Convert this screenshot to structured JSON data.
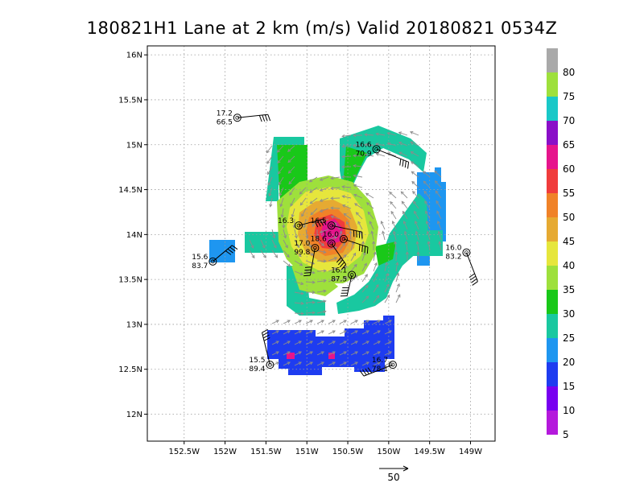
{
  "chart_data": {
    "type": "heatmap",
    "title": "180821H1 Lane at 2 km (m/s) Valid 20180821 0534Z",
    "x_ticks": [
      "152.5W",
      "152W",
      "151.5W",
      "151W",
      "150.5W",
      "150W",
      "149.5W",
      "149W"
    ],
    "y_ticks": [
      "16N",
      "15.5N",
      "15N",
      "14.5N",
      "14N",
      "13.5N",
      "13N",
      "12.5N",
      "12N"
    ],
    "xlim": [
      -152.95,
      -148.7
    ],
    "ylim": [
      11.7,
      16.1
    ],
    "grid": true,
    "colorbar": {
      "ticks": [
        "80",
        "75",
        "70",
        "65",
        "60",
        "55",
        "50",
        "45",
        "40",
        "35",
        "30",
        "25",
        "20",
        "15",
        "10",
        "5"
      ],
      "colors": [
        "#a9a9a9",
        "#9ee03c",
        "#19c8c8",
        "#8a0fc8",
        "#e6148c",
        "#f03c3c",
        "#f08228",
        "#e6aa32",
        "#e6e63c",
        "#9ee03c",
        "#19c819",
        "#19c8a0",
        "#1e96f0",
        "#1e3cf0",
        "#7800f0",
        "#b419dc"
      ]
    },
    "stations": [
      {
        "lon": -151.85,
        "lat": 15.3,
        "speed": "17.2",
        "pressure": "66.5"
      },
      {
        "lon": -150.15,
        "lat": 14.95,
        "speed": "16.6",
        "pressure": "70.9"
      },
      {
        "lon": -151.1,
        "lat": 14.1,
        "speed": "16.3",
        "pressure": ""
      },
      {
        "lon": -150.7,
        "lat": 14.1,
        "speed": "16.5",
        "pressure": ""
      },
      {
        "lon": -150.55,
        "lat": 13.95,
        "speed": "16.0",
        "pressure": ""
      },
      {
        "lon": -150.9,
        "lat": 13.85,
        "speed": "17.0",
        "pressure": "99.8"
      },
      {
        "lon": -150.7,
        "lat": 13.9,
        "speed": "18.6",
        "pressure": ""
      },
      {
        "lon": -150.45,
        "lat": 13.55,
        "speed": "16.1",
        "pressure": "87.5"
      },
      {
        "lon": -152.15,
        "lat": 13.7,
        "speed": "15.6",
        "pressure": "83.7"
      },
      {
        "lon": -149.05,
        "lat": 13.8,
        "speed": "16.0",
        "pressure": "83.2"
      },
      {
        "lon": -151.45,
        "lat": 12.55,
        "speed": "15.5",
        "pressure": "89.4"
      },
      {
        "lon": -149.95,
        "lat": 12.55,
        "speed": "16.7",
        "pressure": "78.1"
      }
    ],
    "reference_vector": {
      "label": "50"
    }
  }
}
